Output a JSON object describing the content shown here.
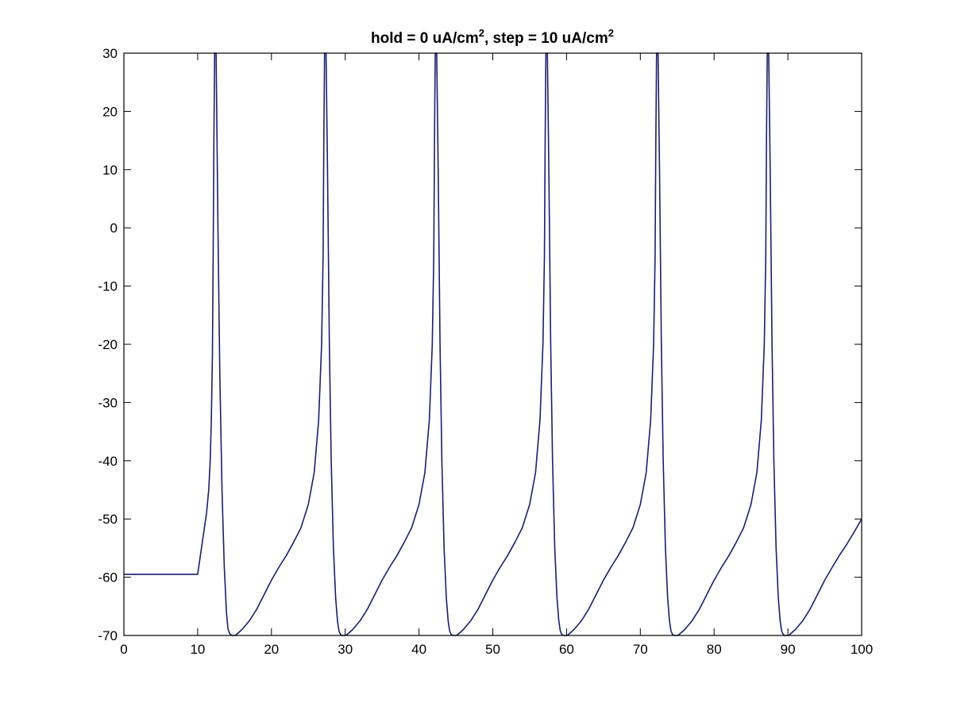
{
  "chart_data": {
    "type": "line",
    "title": "hold = 0 uA/cm2, step = 10 uA/cm2",
    "title_parts": {
      "part1": "hold = 0 uA/cm",
      "sup1": "2",
      "part2": ", step = 10 uA/cm",
      "sup2": "2"
    },
    "xlabel": "",
    "ylabel": "",
    "xlim": [
      0,
      100
    ],
    "ylim": [
      -70,
      30
    ],
    "xticks": [
      0,
      10,
      20,
      30,
      40,
      50,
      60,
      70,
      80,
      90,
      100
    ],
    "yticks": [
      -70,
      -60,
      -50,
      -40,
      -30,
      -20,
      -10,
      0,
      10,
      20,
      30
    ],
    "xtick_labels": [
      "0",
      "10",
      "20",
      "30",
      "40",
      "50",
      "60",
      "70",
      "80",
      "90",
      "100"
    ],
    "ytick_labels": [
      "-70",
      "-60",
      "-50",
      "-40",
      "-30",
      "-20",
      "-10",
      "0",
      "10",
      "20",
      "30"
    ],
    "grid": false,
    "line_color": "#1a1f6e",
    "series": [
      {
        "x": [
          0,
          10,
          10.4,
          10.8,
          11.2,
          11.5,
          11.7,
          11.85,
          12.0,
          12.1,
          12.2,
          12.3,
          12.5,
          12.75,
          13.0,
          13.3,
          13.6,
          13.9,
          14.1,
          14.3,
          14.5,
          14.7,
          15.0,
          15.2,
          16,
          17,
          18,
          19,
          20,
          21,
          22,
          23,
          24,
          25,
          25.8,
          26.4,
          26.8,
          27.0,
          27.1,
          27.2,
          27.3,
          27.4,
          27.6,
          27.85,
          28.1,
          28.4,
          28.7,
          28.95,
          29.15,
          29.35,
          29.55,
          29.75,
          30.0,
          30.2,
          31,
          32,
          33,
          34,
          35,
          36,
          37,
          38,
          39,
          40,
          40.8,
          41.4,
          41.8,
          42.0,
          42.1,
          42.2,
          42.3,
          42.4,
          42.6,
          42.85,
          43.1,
          43.4,
          43.7,
          43.95,
          44.15,
          44.35,
          44.55,
          44.75,
          45.0,
          45.2,
          46,
          47,
          48,
          49,
          50,
          51,
          52,
          53,
          54,
          55,
          55.8,
          56.4,
          56.8,
          57.0,
          57.1,
          57.2,
          57.3,
          57.4,
          57.6,
          57.85,
          58.1,
          58.4,
          58.7,
          58.95,
          59.15,
          59.35,
          59.55,
          59.75,
          60.0,
          60.2,
          61,
          62,
          63,
          64,
          65,
          66,
          67,
          68,
          69,
          70,
          70.8,
          71.4,
          71.8,
          72.0,
          72.1,
          72.2,
          72.3,
          72.4,
          72.6,
          72.85,
          73.1,
          73.4,
          73.7,
          73.95,
          74.15,
          74.35,
          74.55,
          74.75,
          75.0,
          75.2,
          76,
          77,
          78,
          79,
          80,
          81,
          82,
          83,
          84,
          85,
          85.8,
          86.4,
          86.8,
          87.0,
          87.1,
          87.2,
          87.3,
          87.4,
          87.6,
          87.85,
          88.1,
          88.4,
          88.7,
          88.95,
          89.15,
          89.35,
          89.55,
          89.75,
          90.0,
          90.2,
          91,
          92,
          93,
          94,
          95,
          96,
          97,
          98,
          99,
          100
        ],
        "y": [
          -59.5,
          -59.5,
          -56,
          -52.5,
          -49,
          -45,
          -40,
          -33,
          -22,
          -5,
          15,
          30,
          30,
          0,
          -25,
          -45,
          -58,
          -66,
          -68.8,
          -69.6,
          -69.9,
          -70,
          -70,
          -69.9,
          -69,
          -67.5,
          -65.5,
          -63,
          -60.5,
          -58.3,
          -56.3,
          -54,
          -51.5,
          -47.5,
          -42,
          -33,
          -20,
          -5,
          15,
          30,
          30,
          30,
          10,
          -20,
          -40,
          -55,
          -63.5,
          -67.5,
          -69.2,
          -69.8,
          -70,
          -70,
          -70,
          -69.9,
          -69,
          -67.5,
          -65.5,
          -63,
          -60.5,
          -58.3,
          -56.3,
          -54,
          -51.5,
          -47.5,
          -42,
          -33,
          -20,
          -5,
          15,
          30,
          30,
          30,
          10,
          -20,
          -40,
          -55,
          -63.5,
          -67.5,
          -69.2,
          -69.8,
          -70,
          -70,
          -70,
          -69.9,
          -69,
          -67.5,
          -65.5,
          -63,
          -60.5,
          -58.3,
          -56.3,
          -54,
          -51.5,
          -47.5,
          -42,
          -33,
          -20,
          -5,
          15,
          30,
          30,
          30,
          10,
          -20,
          -40,
          -55,
          -63.5,
          -67.5,
          -69.2,
          -69.8,
          -70,
          -70,
          -70,
          -69.9,
          -69,
          -67.5,
          -65.5,
          -63,
          -60.5,
          -58.3,
          -56.3,
          -54,
          -51.5,
          -47.5,
          -42,
          -33,
          -20,
          -5,
          15,
          30,
          30,
          30,
          10,
          -20,
          -40,
          -55,
          -63.5,
          -67.5,
          -69.2,
          -69.8,
          -70,
          -70,
          -70,
          -69.9,
          -69,
          -67.5,
          -65.5,
          -63,
          -60.5,
          -58.3,
          -56.3,
          -54,
          -51.5,
          -47.5,
          -42,
          -33,
          -20,
          -5,
          15,
          30,
          30,
          30,
          10,
          -20,
          -40,
          -55,
          -63.5,
          -67.5,
          -69.2,
          -69.8,
          -70,
          -70,
          -70,
          -69.9,
          -69,
          -67.5,
          -65.5,
          -63,
          -60.5,
          -58.3,
          -56.2,
          -54.3,
          -52.2,
          -50
        ]
      }
    ]
  }
}
